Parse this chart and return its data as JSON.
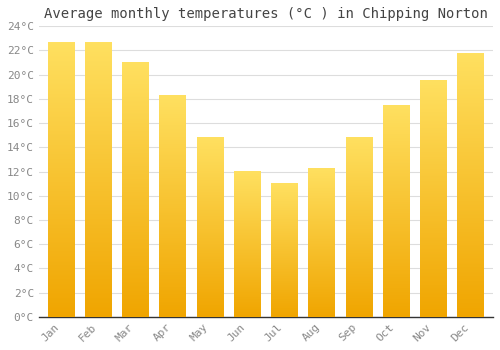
{
  "title": "Average monthly temperatures (°C ) in Chipping Norton",
  "months": [
    "Jan",
    "Feb",
    "Mar",
    "Apr",
    "May",
    "Jun",
    "Jul",
    "Aug",
    "Sep",
    "Oct",
    "Nov",
    "Dec"
  ],
  "values": [
    22.7,
    22.7,
    21.0,
    18.3,
    14.8,
    12.0,
    11.0,
    12.3,
    14.8,
    17.5,
    19.5,
    21.8
  ],
  "bar_color_bottom": "#F5A623",
  "bar_color_top": "#FFD966",
  "ylim": [
    0,
    24
  ],
  "ytick_step": 2,
  "background_color": "#FFFFFF",
  "grid_color": "#DDDDDD",
  "title_fontsize": 10,
  "tick_fontsize": 8,
  "tick_color": "#888888",
  "font_family": "monospace"
}
